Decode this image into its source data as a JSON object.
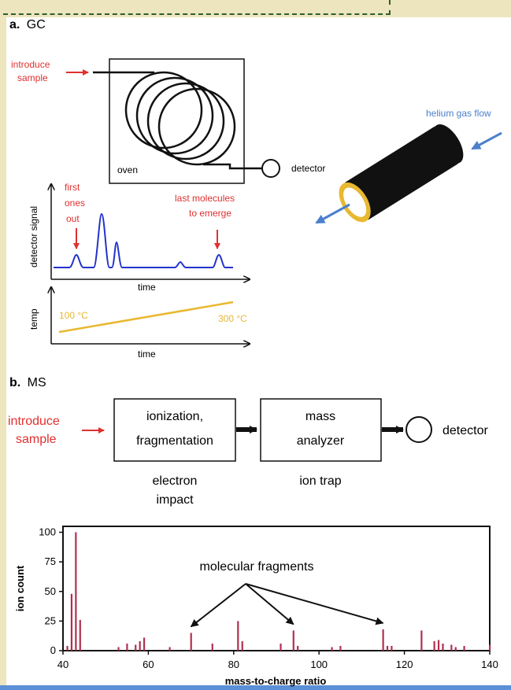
{
  "colors": {
    "annotation_red": "#e03030",
    "signal_blue": "#2233cc",
    "temp_yellow": "#e8b830",
    "helium_blue": "#4a7fcc",
    "bar_red": "#b03050"
  },
  "gc": {
    "panel_letter": "a.",
    "panel_name": "GC",
    "introduce_label_1": "introduce",
    "introduce_label_2": "sample",
    "oven_label": "oven",
    "detector_label": "detector",
    "helium_label": "helium gas flow",
    "signal_ylabel": "detector signal",
    "first_out_1": "first",
    "first_out_2": "ones",
    "first_out_3": "out",
    "last_out_1": "last molecules",
    "last_out_2": "to emerge",
    "time_label": "time",
    "temp_ylabel": "temp",
    "temp_start": "100 °C",
    "temp_end": "300 °C"
  },
  "ms": {
    "panel_letter": "b.",
    "panel_name": "MS",
    "introduce_label_1": "introduce",
    "introduce_label_2": "sample",
    "box1_line1": "ionization,",
    "box1_line2": "fragmentation",
    "box2_line1": "mass",
    "box2_line2": "analyzer",
    "detector_label": "detector",
    "under1_line1": "electron",
    "under1_line2": "impact",
    "under2_line1": "ion trap"
  },
  "chart_data": {
    "type": "bar",
    "xlabel": "mass-to-charge ratio",
    "ylabel": "ion count",
    "xlim": [
      40,
      140
    ],
    "ylim": [
      0,
      105
    ],
    "xticks": [
      40,
      60,
      80,
      100,
      120,
      140
    ],
    "yticks": [
      0,
      25,
      50,
      75,
      100
    ],
    "annotation": "molecular fragments",
    "annotation_targets": [
      70,
      94,
      115
    ],
    "x": [
      41,
      42,
      43,
      44,
      53,
      55,
      57,
      58,
      59,
      65,
      70,
      75,
      81,
      82,
      91,
      94,
      95,
      103,
      105,
      115,
      116,
      117,
      124,
      127,
      128,
      129,
      131,
      132,
      134,
      140
    ],
    "values": [
      4,
      48,
      100,
      26,
      3,
      6,
      5,
      8,
      11,
      3,
      15,
      6,
      25,
      8,
      6,
      17,
      4,
      3,
      4,
      18,
      4,
      4,
      17,
      8,
      9,
      6,
      5,
      3,
      4,
      5
    ]
  }
}
